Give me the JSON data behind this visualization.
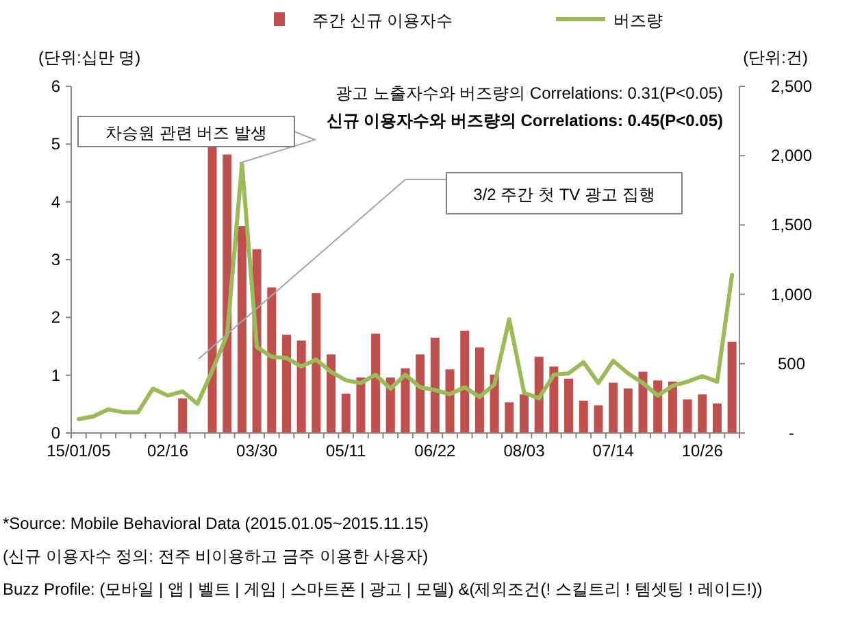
{
  "chart_data": {
    "type": "bar",
    "categories": [
      "15/01/05",
      null,
      null,
      null,
      null,
      null,
      "02/16",
      null,
      null,
      null,
      null,
      null,
      "03/30",
      null,
      null,
      null,
      null,
      null,
      "05/11",
      null,
      null,
      null,
      null,
      null,
      "06/22",
      null,
      null,
      null,
      null,
      null,
      "08/03",
      null,
      null,
      null,
      null,
      null,
      "07/14",
      null,
      null,
      null,
      null,
      null,
      "10/26",
      null,
      null
    ],
    "ylabel": "(단위:십만 명)",
    "y2label": "(단위:건)",
    "series": [
      {
        "name": "주간 신규 이용자수",
        "color": "#c0504d",
        "values": [
          null,
          null,
          null,
          null,
          null,
          null,
          null,
          0.6,
          null,
          4.95,
          4.82,
          3.58,
          3.18,
          2.52,
          1.7,
          1.6,
          2.42,
          1.36,
          0.68,
          0.96,
          1.72,
          0.96,
          1.12,
          1.36,
          1.65,
          1.1,
          1.77,
          1.48,
          1.01,
          0.53,
          0.67,
          1.32,
          1.15,
          0.94,
          0.56,
          0.48,
          0.87,
          0.77,
          1.06,
          0.91,
          0.89,
          0.58,
          0.67,
          0.51,
          1.58
        ]
      },
      {
        "name": "버즈량",
        "type": "line",
        "axis": "y2",
        "color": "#9bbb59",
        "values": [
          100,
          120,
          170,
          150,
          150,
          320,
          270,
          300,
          210,
          450,
          710,
          1940,
          620,
          550,
          540,
          480,
          530,
          440,
          380,
          360,
          420,
          320,
          420,
          330,
          310,
          280,
          330,
          260,
          350,
          820,
          290,
          250,
          420,
          430,
          510,
          360,
          520,
          430,
          360,
          270,
          340,
          370,
          410,
          370,
          1140
        ]
      }
    ],
    "ylim": [
      0,
      6
    ],
    "yticks": [
      0,
      1,
      2,
      3,
      4,
      5,
      6
    ],
    "y2lim": [
      0,
      2500
    ],
    "y2ticks": [
      {
        "value": 0,
        "label": "-"
      },
      500,
      {
        "value": 1000,
        "label": "1,000"
      },
      {
        "value": 1500,
        "label": "1,500"
      },
      {
        "value": 2000,
        "label": "2,000"
      },
      {
        "value": 2500,
        "label": "2,500"
      }
    ],
    "legend": "top",
    "grid": false,
    "annotations": [
      "광고 노출자수와 버즈량의 Correlations: 0.31(P<0.05)",
      "신규 이용자수와 버즈량의 Correlations: 0.45(P<0.05)",
      "차승원 관련 버즈 발생",
      "3/2 주간 첫 TV 광고 집행",
      "*Source: Mobile Behavioral Data (2015.01.05~2015.11.15)",
      "(신규 이용자수 정의: 전주 비이용하고 금주 이용한 사용자)",
      "Buzz Profile: (모바일 | 앱 | 벨트 | 게임 | 스마트폰 | 광고 | 모델) &(제외조건(! 스킬트리 ! 템셋팅 ! 레이드!))"
    ]
  }
}
